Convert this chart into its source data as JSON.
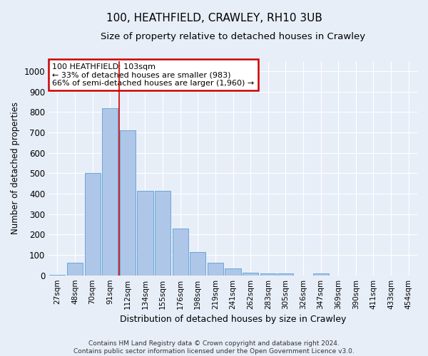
{
  "title": "100, HEATHFIELD, CRAWLEY, RH10 3UB",
  "subtitle": "Size of property relative to detached houses in Crawley",
  "xlabel": "Distribution of detached houses by size in Crawley",
  "ylabel": "Number of detached properties",
  "categories": [
    "27sqm",
    "48sqm",
    "70sqm",
    "91sqm",
    "112sqm",
    "134sqm",
    "155sqm",
    "176sqm",
    "198sqm",
    "219sqm",
    "241sqm",
    "262sqm",
    "283sqm",
    "305sqm",
    "326sqm",
    "347sqm",
    "369sqm",
    "390sqm",
    "411sqm",
    "433sqm",
    "454sqm"
  ],
  "values": [
    3,
    62,
    500,
    820,
    710,
    415,
    415,
    230,
    115,
    62,
    35,
    12,
    8,
    10,
    0,
    8,
    0,
    0,
    0,
    0,
    0
  ],
  "bar_color": "#aec6e8",
  "bar_edge_color": "#5a9fd4",
  "annotation_box_text": "100 HEATHFIELD: 103sqm\n← 33% of detached houses are smaller (983)\n66% of semi-detached houses are larger (1,960) →",
  "annotation_box_color": "#ffffff",
  "annotation_box_edge_color": "#cc0000",
  "property_line_x": 4,
  "property_line_color": "#cc0000",
  "ylim": [
    0,
    1050
  ],
  "yticks": [
    0,
    100,
    200,
    300,
    400,
    500,
    600,
    700,
    800,
    900,
    1000
  ],
  "bg_color": "#e8eef8",
  "grid_color": "#ffffff",
  "title_fontsize": 11,
  "subtitle_fontsize": 9.5,
  "footer_line1": "Contains HM Land Registry data © Crown copyright and database right 2024.",
  "footer_line2": "Contains public sector information licensed under the Open Government Licence v3.0."
}
